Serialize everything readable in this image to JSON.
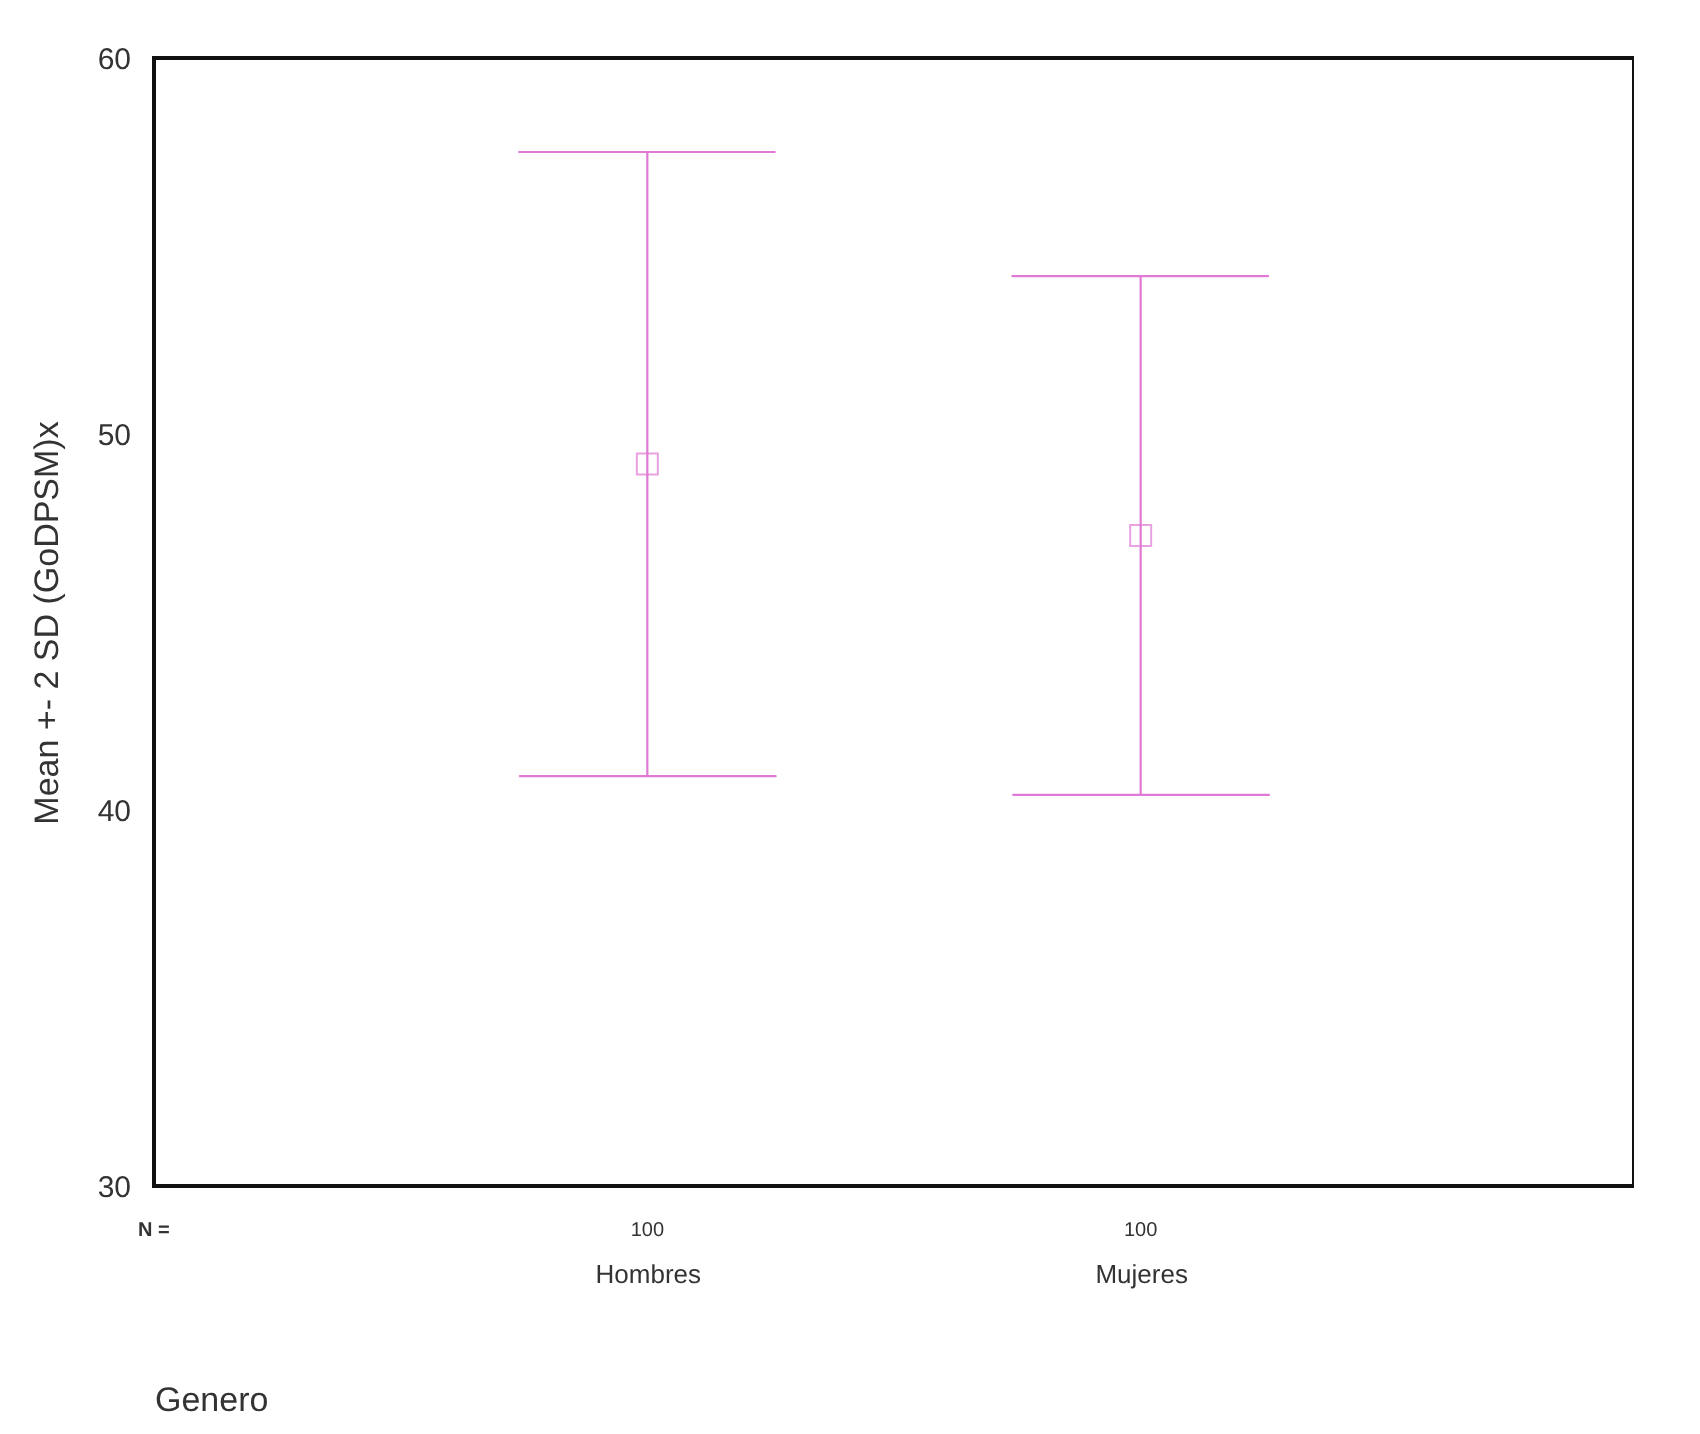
{
  "chart_data": {
    "type": "scatter",
    "xlabel": "Genero",
    "ylabel": "Mean +- 2 SD (GoDPSM)x",
    "categories": [
      "Hombres",
      "Mujeres"
    ],
    "color": "#e07ad6",
    "values": [
      49.2,
      47.3
    ],
    "errors": [
      [
        40.9,
        57.5
      ],
      [
        40.4,
        54.2
      ]
    ],
    "marker": "square",
    "grid": false,
    "ylim": [
      30,
      60
    ],
    "yticks": [
      30,
      40,
      50,
      60
    ],
    "annotations": [
      "N =",
      "100",
      "100"
    ]
  }
}
